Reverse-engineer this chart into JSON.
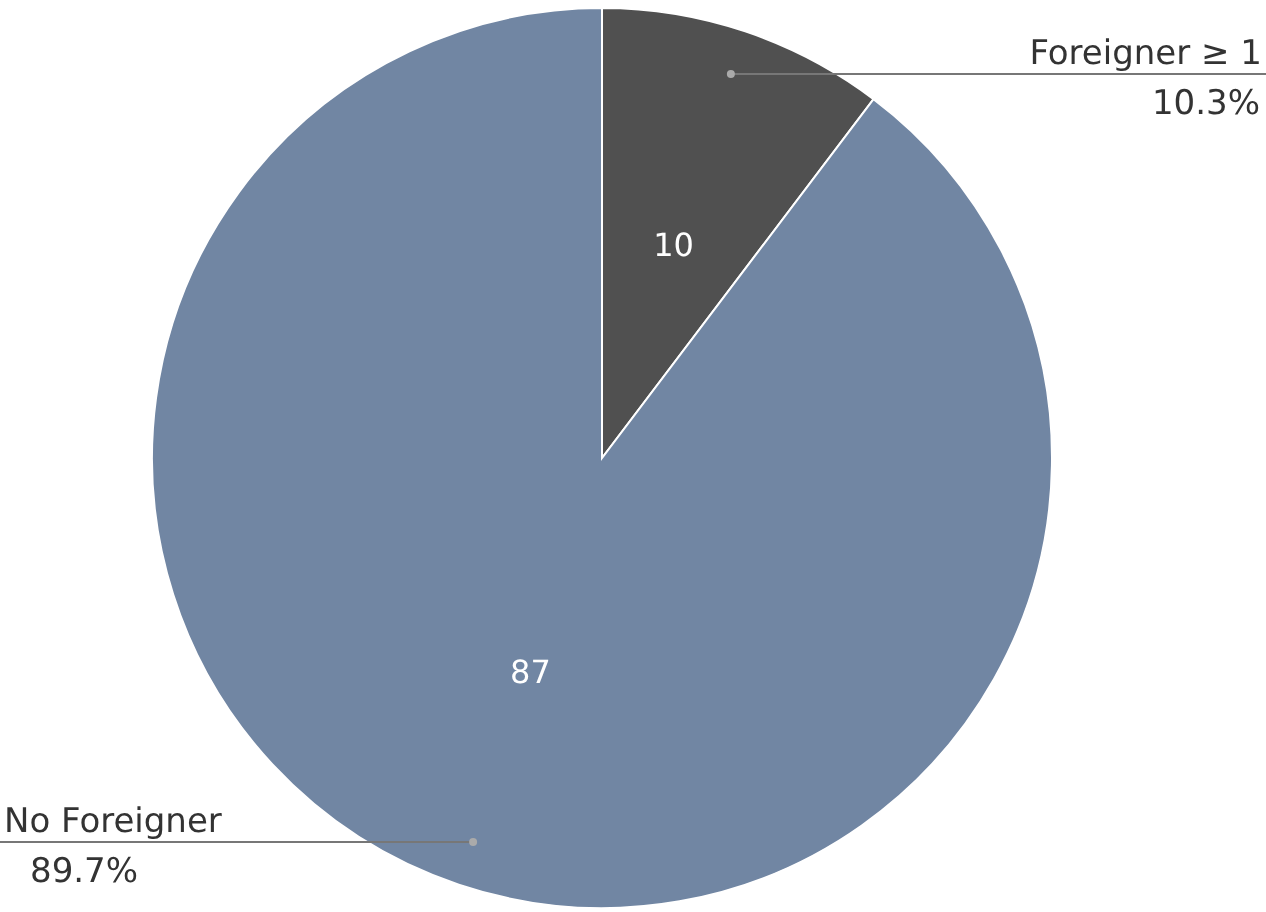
{
  "chart_data": {
    "type": "pie",
    "categories": [
      "Foreigner ≥ 1",
      "No Foreigner"
    ],
    "values": [
      10,
      87
    ],
    "colors": [
      "#505050",
      "#7186a3"
    ],
    "data_labels": true,
    "annotations": [
      "10.3%",
      "89.7%"
    ]
  }
}
